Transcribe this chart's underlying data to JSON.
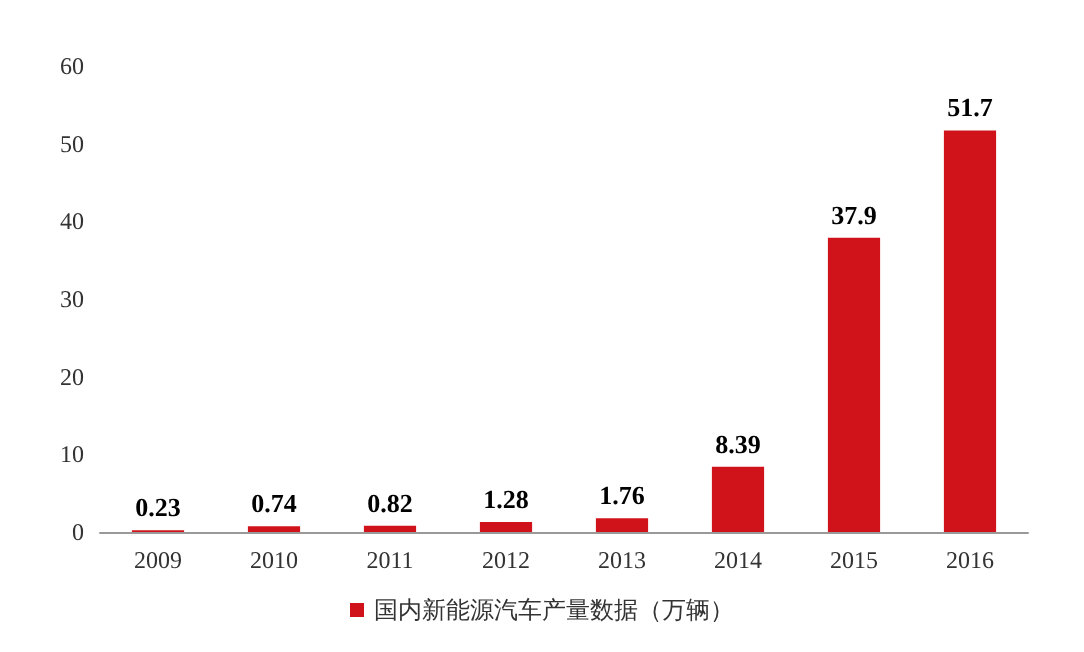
{
  "chart_data": {
    "type": "bar",
    "categories": [
      "2009",
      "2010",
      "2011",
      "2012",
      "2013",
      "2014",
      "2015",
      "2016"
    ],
    "series": [
      {
        "name": "国内新能源汽车产量数据（万辆）",
        "color": "#d0121b",
        "values": [
          0.23,
          0.74,
          0.82,
          1.28,
          1.76,
          8.39,
          37.9,
          51.7
        ]
      }
    ],
    "ylim": [
      0,
      60
    ],
    "yticks": [
      0,
      10,
      20,
      30,
      40,
      50,
      60
    ],
    "grid": false,
    "legend": "bottom",
    "data_labels": true
  }
}
